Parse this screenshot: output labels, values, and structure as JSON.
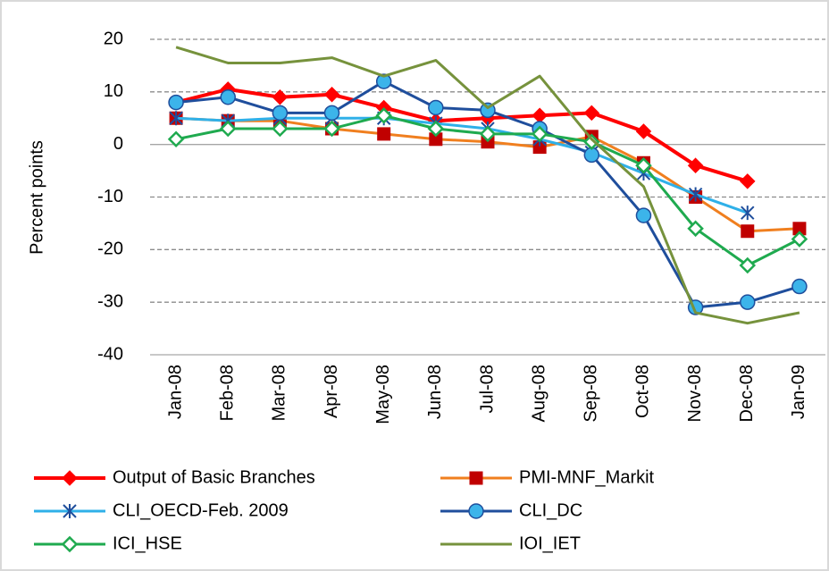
{
  "chart_data": {
    "type": "line",
    "y_label": "Percent  points",
    "categories": [
      "Jan-08",
      "Feb-08",
      "Mar-08",
      "Apr-08",
      "May-08",
      "Jun-08",
      "Jul-08",
      "Aug-08",
      "Sep-08",
      "Oct-08",
      "Nov-08",
      "Dec-08",
      "Jan-09"
    ],
    "ylim": [
      -40,
      20
    ],
    "yticks": [
      -40,
      -30,
      -20,
      -10,
      0,
      10,
      20
    ],
    "grid": true,
    "series": [
      {
        "name": "Output of Basic Branches",
        "color": "#ff0000",
        "marker": "diamond",
        "values": [
          8,
          10.5,
          9,
          9.5,
          7,
          4.5,
          5,
          5.5,
          6,
          2.5,
          -4,
          -7,
          null
        ]
      },
      {
        "name": "PMI-MNF_Markit",
        "color": "#f07f1f",
        "marker": "square",
        "values": [
          5,
          4.5,
          4.5,
          3,
          2,
          1,
          0.5,
          -0.5,
          1.5,
          -3.5,
          -10,
          -16.5,
          -16
        ]
      },
      {
        "name": "CLI_OECD-Feb. 2009",
        "color": "#2fb0e8",
        "marker": "star",
        "values": [
          5,
          4.5,
          5,
          5,
          5,
          4,
          3,
          1,
          -1.5,
          -5.5,
          -9.5,
          -13,
          null
        ]
      },
      {
        "name": "CLI_DC",
        "color": "#1f4e9c",
        "marker": "circle",
        "values": [
          8,
          9,
          6,
          6,
          12,
          7,
          6.5,
          3,
          -2,
          -13.5,
          -31,
          -30,
          -27
        ]
      },
      {
        "name": "ICI_HSE",
        "color": "#1faa4f",
        "marker": "open-diamond",
        "values": [
          1,
          3,
          3,
          3,
          5.5,
          3,
          2,
          2,
          0.5,
          -4,
          -16,
          -23,
          -18
        ]
      },
      {
        "name": "IOI_IET",
        "color": "#76923c",
        "marker": "none",
        "values": [
          18.5,
          15.5,
          15.5,
          16.5,
          13,
          16,
          7,
          13,
          1,
          -8,
          -32,
          -34,
          -32
        ]
      }
    ]
  }
}
